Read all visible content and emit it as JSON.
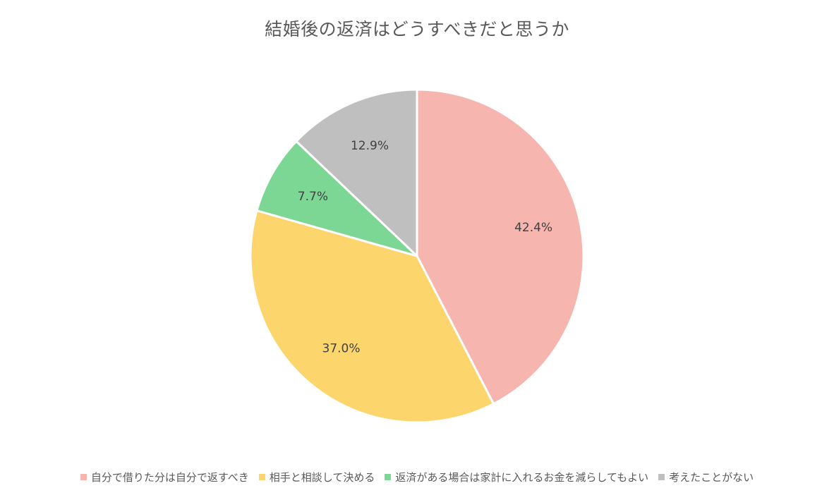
{
  "chart_data": {
    "type": "pie",
    "title": "結婚後の返済はどうすべきだと思うか",
    "categories": [
      "自分で借りた分は自分で返すべき",
      "相手と相談して決める",
      "返済がある場合は家計に入れるお金を減らしてもよい",
      "考えたことがない"
    ],
    "values": [
      42.4,
      37.0,
      7.7,
      12.9
    ],
    "labels": [
      "42.4%",
      "37.0%",
      "7.7%",
      "12.9%"
    ],
    "colors": [
      "#F6B5AF",
      "#FCD66C",
      "#7CD794",
      "#BFBFBF"
    ],
    "legend_position": "bottom",
    "start_angle": "top, clockwise"
  }
}
